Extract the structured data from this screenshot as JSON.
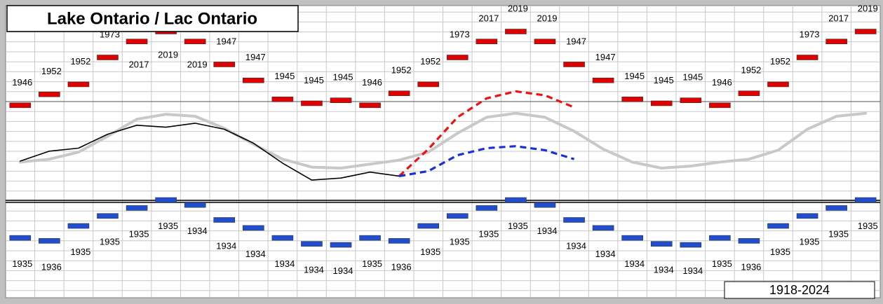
{
  "chart_data": {
    "type": "line",
    "title": "Lake Ontario / Lac Ontario",
    "period": "1918-2024",
    "categories": [
      null,
      null,
      null,
      null,
      null,
      null,
      null,
      null,
      null,
      null,
      null,
      null,
      null,
      null,
      null,
      null,
      null,
      null,
      null,
      null,
      null,
      null,
      null,
      null,
      null,
      null,
      null,
      null,
      null,
      null
    ],
    "ylim": [
      73.23,
      76.16
    ],
    "grid": true,
    "series": [
      {
        "style": "bar-mark",
        "color": "#e00000",
        "label_side": "above",
        "values": [
          75.16,
          75.27,
          75.37,
          75.64,
          75.8,
          75.9,
          75.8,
          75.57,
          75.41,
          75.22,
          75.18,
          75.21,
          75.16,
          75.28,
          75.37,
          75.64,
          75.8,
          75.9,
          75.8,
          75.57,
          75.41,
          75.22,
          75.18,
          75.21,
          75.16,
          75.28,
          75.37,
          75.64,
          75.8,
          75.9
        ],
        "labels": [
          "1946",
          "1952",
          "1952",
          "1973",
          "2017",
          "2019",
          "2019",
          "1947",
          "1947",
          "1945",
          "1945",
          "1945",
          "1946",
          "1952",
          "1952",
          "1973",
          "2017",
          "2019",
          "2019",
          "1947",
          "1947",
          "1945",
          "1945",
          "1945",
          "1946",
          "1952",
          "1952",
          "1973",
          "2017",
          "2019"
        ]
      },
      {
        "style": "bar-mark",
        "color": "#1f4fd0",
        "label_side": "below",
        "values": [
          73.83,
          73.8,
          73.95,
          74.05,
          74.13,
          74.21,
          74.16,
          74.01,
          73.93,
          73.83,
          73.77,
          73.76,
          73.83,
          73.8,
          73.95,
          74.05,
          74.13,
          74.21,
          74.16,
          74.01,
          73.93,
          73.83,
          73.77,
          73.76,
          73.83,
          73.8,
          73.95,
          74.05,
          74.13,
          74.21
        ],
        "labels": [
          "1935",
          "1936",
          "1935",
          "1935",
          "1935",
          "1935",
          "1934",
          "1934",
          "1934",
          "1934",
          "1934",
          "1934",
          "1935",
          "1936",
          "1935",
          "1935",
          "1935",
          "1935",
          "1934",
          "1934",
          "1934",
          "1934",
          "1934",
          "1934",
          "1935",
          "1936",
          "1935",
          "1935",
          "1935",
          "1935"
        ]
      },
      {
        "style": "thick",
        "color": "#c8c8c8",
        "values": [
          74.59,
          74.62,
          74.69,
          74.85,
          75.02,
          75.07,
          75.05,
          74.93,
          74.77,
          74.62,
          74.54,
          74.53,
          74.57,
          74.61,
          74.69,
          74.88,
          75.04,
          75.08,
          75.04,
          74.9,
          74.72,
          74.59,
          74.53,
          74.55,
          74.59,
          74.62,
          74.71,
          74.92,
          75.05,
          75.08
        ]
      },
      {
        "style": "solid",
        "color": "#000000",
        "values": [
          74.6,
          74.7,
          74.73,
          74.87,
          74.96,
          74.94,
          74.98,
          74.92,
          74.78,
          74.58,
          74.41,
          74.43,
          74.49,
          74.45,
          null,
          null,
          null,
          null,
          null,
          null,
          null,
          null,
          null,
          null,
          null,
          null,
          null,
          null,
          null,
          null
        ]
      },
      {
        "style": "dashed",
        "color": "#ee1111",
        "values": [
          null,
          null,
          null,
          null,
          null,
          null,
          null,
          null,
          null,
          null,
          null,
          null,
          null,
          74.45,
          74.72,
          75.04,
          75.23,
          75.3,
          75.26,
          75.14,
          null,
          null,
          null,
          null,
          null,
          null,
          null,
          null,
          null,
          null
        ]
      },
      {
        "style": "dashed",
        "color": "#1a2fd8",
        "values": [
          null,
          null,
          null,
          null,
          null,
          null,
          null,
          null,
          null,
          null,
          null,
          null,
          null,
          74.45,
          74.5,
          74.66,
          74.73,
          74.75,
          74.71,
          74.62,
          null,
          null,
          null,
          null,
          null,
          null,
          null,
          null,
          null,
          null
        ]
      }
    ]
  }
}
